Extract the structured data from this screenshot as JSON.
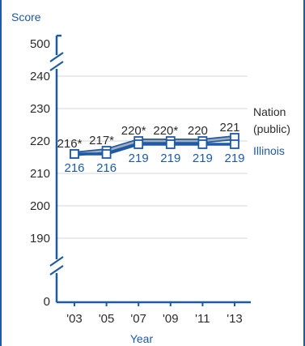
{
  "chart_data": {
    "type": "line",
    "ylabel": "Score",
    "xlabel": "Year",
    "categories": [
      "'03",
      "'05",
      "'07",
      "'09",
      "'11",
      "'13"
    ],
    "y_ticks": [
      "500",
      "240",
      "230",
      "220",
      "210",
      "200",
      "190",
      "0"
    ],
    "axis_break": true,
    "grid": true,
    "series": [
      {
        "name": "Nation (public)",
        "name_lines": [
          "Nation",
          "(public)"
        ],
        "values": [
          216,
          217,
          220,
          220,
          220,
          221
        ],
        "labels": [
          "216*",
          "217*",
          "220*",
          "220*",
          "220",
          "221"
        ],
        "color": "#a6adb8"
      },
      {
        "name": "Illinois",
        "values": [
          216,
          216,
          219,
          219,
          219,
          219
        ],
        "labels": [
          "216",
          "216",
          "219",
          "219",
          "219",
          "219"
        ],
        "color": "#1f5aa6"
      }
    ]
  }
}
